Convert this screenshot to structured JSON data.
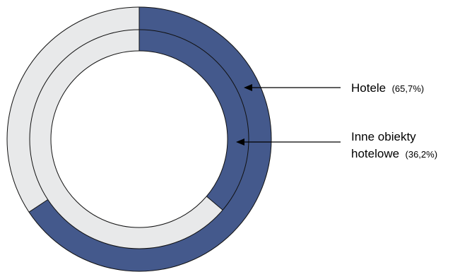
{
  "chart_data": {
    "type": "pie",
    "variant": "nested-donut",
    "series": [
      {
        "name": "Hotele",
        "ring": "outer",
        "label_lines": [
          "Hotele"
        ],
        "value_label": "(65,7%)",
        "value": 65.7
      },
      {
        "name": "Inne obiekty hotelowe",
        "ring": "inner",
        "label_lines": [
          "Inne obiekty",
          "hotelowe"
        ],
        "value_label": "(36,2%)",
        "value": 36.2
      }
    ],
    "colors": {
      "highlight": "#44598c",
      "remainder": "#e8e9ea",
      "outline": "#111111"
    },
    "legend": "right"
  }
}
